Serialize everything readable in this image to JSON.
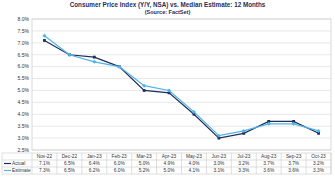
{
  "chart_data": {
    "type": "line",
    "title": "Consumer Price Index (Y/Y, NSA) vs. Median Estimate: 12 Months",
    "subtitle": "(Source: FactSet)",
    "categories": [
      "Nov-22",
      "Dec-22",
      "Jan-23",
      "Feb-23",
      "Mar-23",
      "Apr-23",
      "May-23",
      "Jun-23",
      "Jul-23",
      "Aug-23",
      "Sep-23",
      "Oct-23"
    ],
    "series": [
      {
        "name": "Actual",
        "color": "#1f2d5a",
        "marker": "square",
        "values": [
          7.1,
          6.5,
          6.4,
          6.0,
          5.0,
          4.9,
          4.0,
          3.0,
          3.2,
          3.7,
          3.7,
          3.2
        ],
        "value_labels": [
          "7.1%",
          "6.5%",
          "6.4%",
          "6.0%",
          "5.0%",
          "4.9%",
          "4.0%",
          "3.0%",
          "3.2%",
          "3.7%",
          "3.7%",
          "3.2%"
        ]
      },
      {
        "name": "Estimate",
        "color": "#4fb3e8",
        "marker": "diamond",
        "values": [
          7.3,
          6.5,
          6.2,
          6.0,
          5.2,
          5.0,
          4.1,
          3.1,
          3.3,
          3.6,
          3.6,
          3.3
        ],
        "value_labels": [
          "7.3%",
          "6.5%",
          "6.2%",
          "6.0%",
          "5.2%",
          "5.0%",
          "4.1%",
          "3.1%",
          "3.3%",
          "3.6%",
          "3.6%",
          "3.3%"
        ]
      }
    ],
    "ylim": [
      2.5,
      8.0
    ],
    "yticks": [
      {
        "value": 2.5,
        "label": "2.5%"
      },
      {
        "value": 3.0,
        "label": "3.0%"
      },
      {
        "value": 3.5,
        "label": "3.5%"
      },
      {
        "value": 4.0,
        "label": "4.0%"
      },
      {
        "value": 4.5,
        "label": "4.5%"
      },
      {
        "value": 5.0,
        "label": "5.0%"
      },
      {
        "value": 5.5,
        "label": "5.5%"
      },
      {
        "value": 6.0,
        "label": "6.0%"
      },
      {
        "value": 6.5,
        "label": "6.5%"
      },
      {
        "value": 7.0,
        "label": "7.0%"
      },
      {
        "value": 7.5,
        "label": "7.5%"
      },
      {
        "value": 8.0,
        "label": "8.0%"
      }
    ],
    "grid": true
  }
}
